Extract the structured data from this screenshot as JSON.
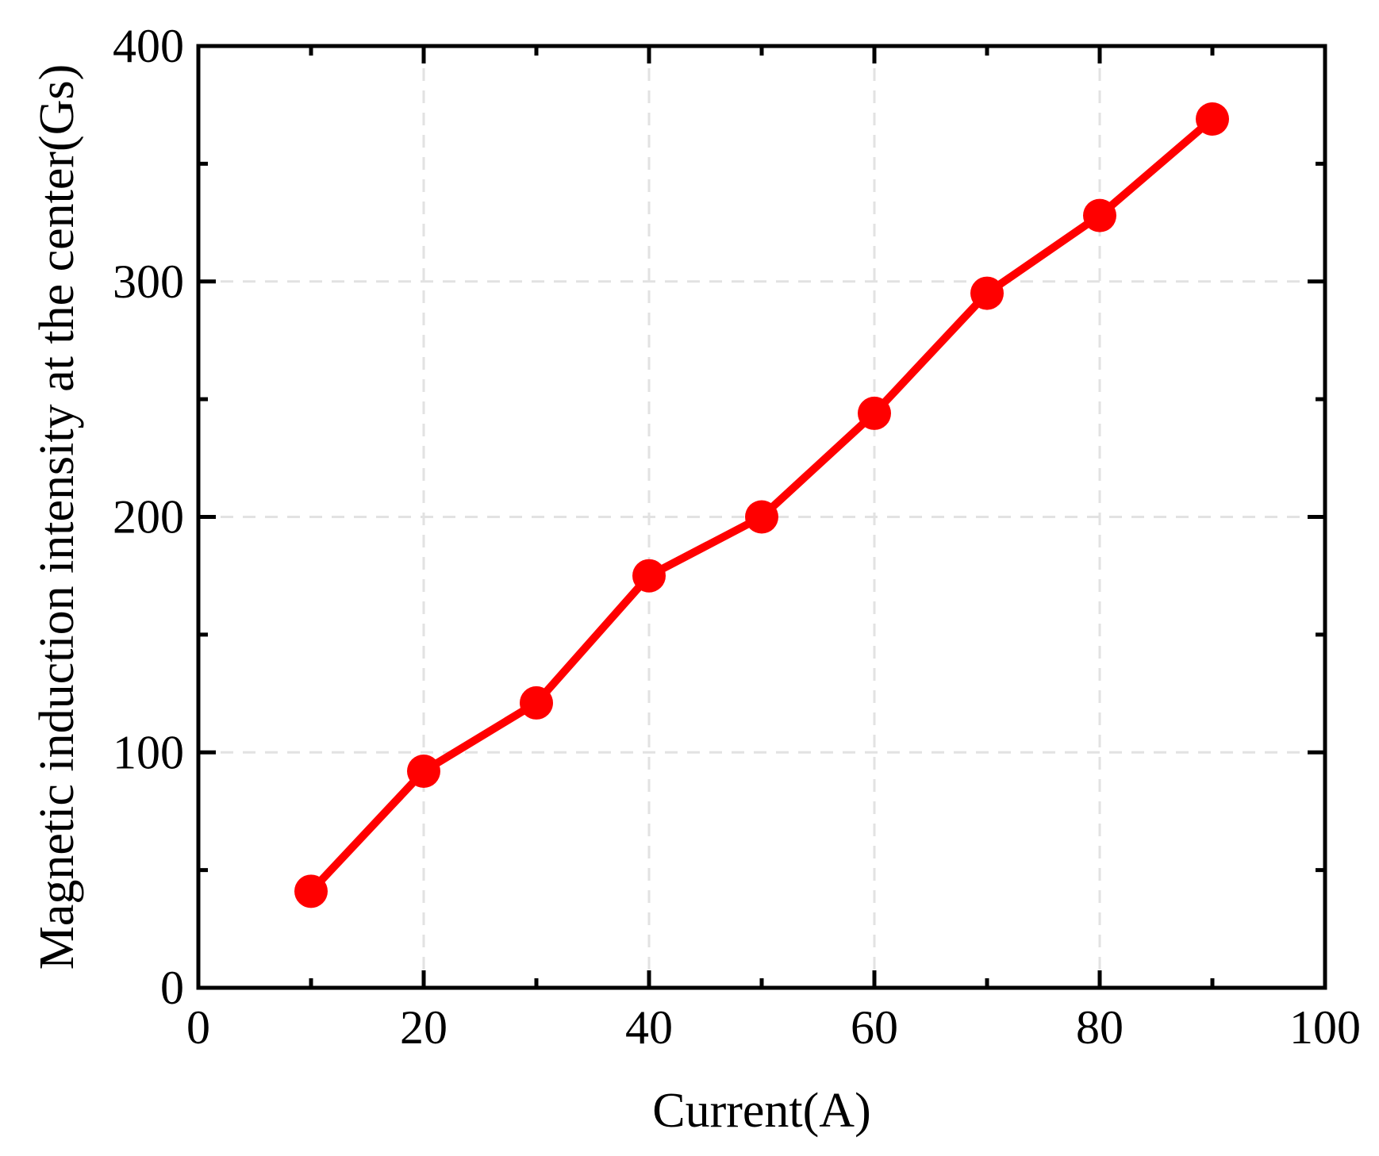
{
  "chart_data": {
    "type": "line",
    "title": "",
    "xlabel": "Current(A)",
    "ylabel": "Magnetic induction intensity at the center(Gs)",
    "xlim": [
      0,
      100
    ],
    "ylim": [
      0,
      400
    ],
    "xticks": [
      0,
      20,
      40,
      60,
      80,
      100
    ],
    "yticks": [
      0,
      100,
      200,
      300,
      400
    ],
    "xtick_labels": [
      "0",
      "20",
      "40",
      "60",
      "80",
      "100"
    ],
    "ytick_labels": [
      "0",
      "100",
      "200",
      "300",
      "400"
    ],
    "grid": true,
    "legend": "none",
    "series": [
      {
        "color": "#ff0000",
        "marker": "circle",
        "x": [
          10,
          20,
          30,
          40,
          50,
          60,
          70,
          80,
          90
        ],
        "y": [
          41,
          92,
          121,
          175,
          200,
          244,
          295,
          328,
          369
        ]
      }
    ]
  }
}
